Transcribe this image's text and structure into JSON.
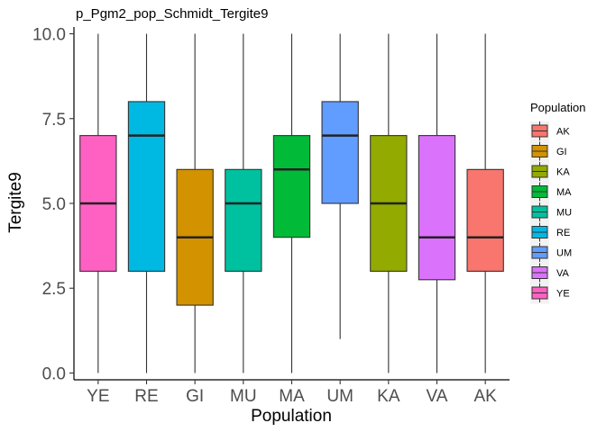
{
  "chart_data": {
    "type": "boxplot",
    "title": "p_Pgm2_pop_Schmidt_Tergite9",
    "xlabel": "Population",
    "ylabel": "Tergite9",
    "ylim": [
      -0.2,
      10.2
    ],
    "yticks": [
      0.0,
      2.5,
      5.0,
      7.5,
      10.0
    ],
    "ytick_labels": [
      "0.0",
      "2.5",
      "5.0",
      "7.5",
      "10.0"
    ],
    "grid": false,
    "legend_placement": "right",
    "legend_title": "Population",
    "legend_entries": [
      {
        "name": "AK",
        "color": "#F8766D"
      },
      {
        "name": "GI",
        "color": "#D39200"
      },
      {
        "name": "KA",
        "color": "#93AA00"
      },
      {
        "name": "MA",
        "color": "#00BA38"
      },
      {
        "name": "MU",
        "color": "#00C19F"
      },
      {
        "name": "RE",
        "color": "#00B9E3"
      },
      {
        "name": "UM",
        "color": "#619CFF"
      },
      {
        "name": "VA",
        "color": "#DB72FB"
      },
      {
        "name": "YE",
        "color": "#FF61C3"
      }
    ],
    "categories": [
      "YE",
      "RE",
      "GI",
      "MU",
      "MA",
      "UM",
      "KA",
      "VA",
      "AK"
    ],
    "boxes": [
      {
        "name": "YE",
        "min": 0,
        "q1": 3,
        "median": 5,
        "q3": 7,
        "max": 10
      },
      {
        "name": "RE",
        "min": 0,
        "q1": 3,
        "median": 7,
        "q3": 8,
        "max": 10
      },
      {
        "name": "GI",
        "min": 0,
        "q1": 2,
        "median": 4,
        "q3": 6,
        "max": 10
      },
      {
        "name": "MU",
        "min": 0,
        "q1": 3,
        "median": 5,
        "q3": 6,
        "max": 10
      },
      {
        "name": "MA",
        "min": 0,
        "q1": 4,
        "median": 6,
        "q3": 7,
        "max": 10
      },
      {
        "name": "UM",
        "min": 1,
        "q1": 5,
        "median": 7,
        "q3": 8,
        "max": 10
      },
      {
        "name": "KA",
        "min": 0,
        "q1": 3,
        "median": 5,
        "q3": 7,
        "max": 10
      },
      {
        "name": "VA",
        "min": 0,
        "q1": 2.75,
        "median": 4,
        "q3": 7,
        "max": 10
      },
      {
        "name": "AK",
        "min": 0,
        "q1": 3,
        "median": 4,
        "q3": 6,
        "max": 10
      }
    ]
  }
}
